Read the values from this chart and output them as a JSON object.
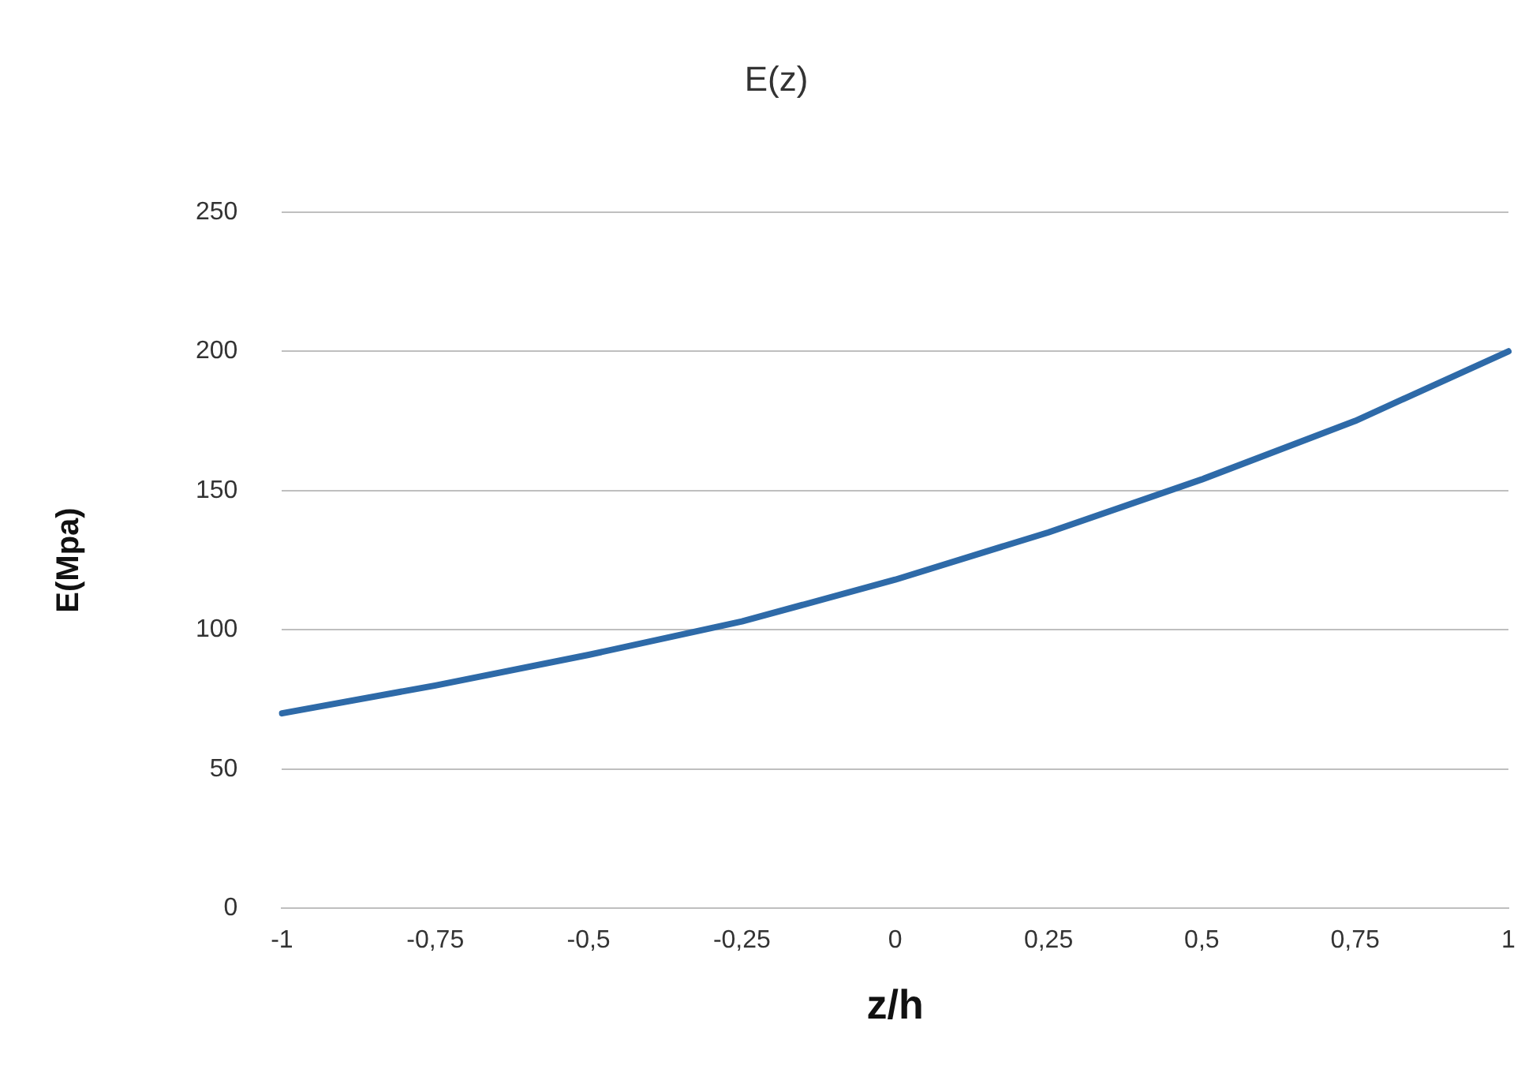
{
  "chart_data": {
    "type": "line",
    "title": "E(z)",
    "xlabel": "z/h",
    "ylabel": "E(Mpa)",
    "categories": [
      "-1",
      "-0,75",
      "-0,5",
      "-0,25",
      "0",
      "0,25",
      "0,5",
      "0,75",
      "1"
    ],
    "series": [
      {
        "color": "#2e6aa8",
        "values": [
          70,
          80,
          91,
          103,
          118,
          135,
          154,
          175,
          200
        ]
      }
    ],
    "ylim": [
      0,
      250
    ],
    "yticks": [
      0,
      50,
      100,
      150,
      200,
      250
    ],
    "grid": "y",
    "legend": false,
    "marker": "none",
    "line_style": "solid"
  }
}
